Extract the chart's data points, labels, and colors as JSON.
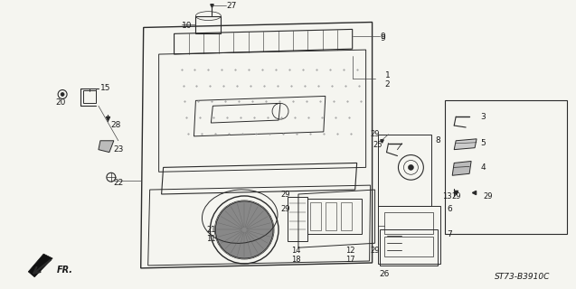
{
  "bg_color": "#f5f5f0",
  "line_color": "#2a2a2a",
  "text_color": "#1a1a1a",
  "diagram_code": "ST73-B3910C",
  "figsize": [
    6.37,
    3.2
  ],
  "dpi": 100,
  "door_outline": {
    "x": [
      0.175,
      0.595,
      0.595,
      0.505,
      0.175
    ],
    "y": [
      0.12,
      0.06,
      0.95,
      0.95,
      0.95
    ]
  }
}
